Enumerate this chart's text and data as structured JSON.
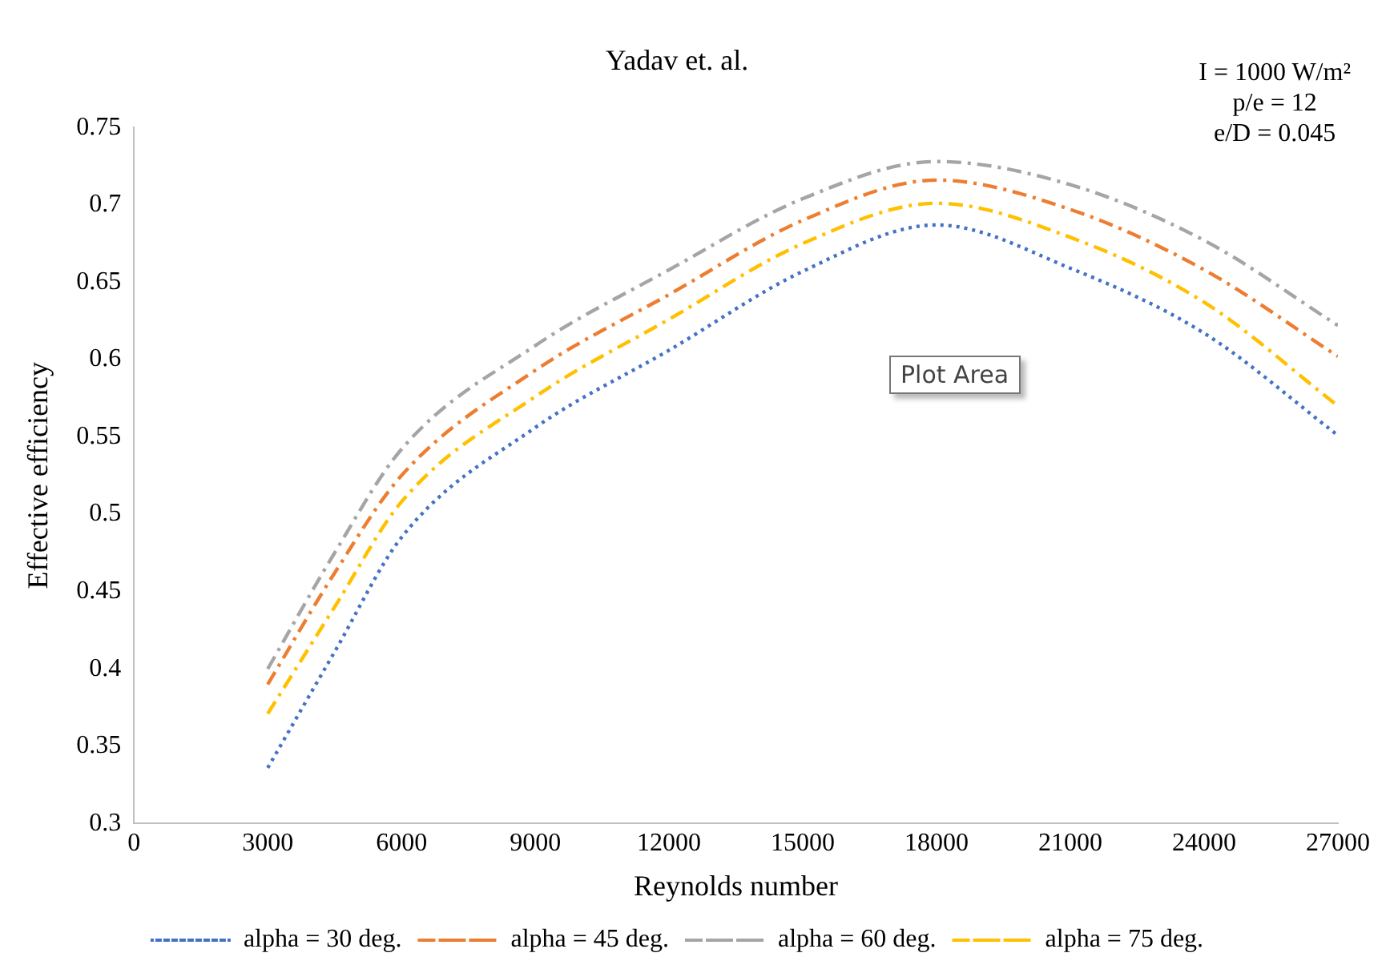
{
  "chart_data": {
    "type": "line",
    "title": "Yadav et. al.",
    "xlabel": "Reynolds number",
    "ylabel": "Effective efficiency",
    "annotations": [
      "I = 1000 W/m²",
      "p/e = 12",
      "e/D = 0.045",
      "Plot Area"
    ],
    "x": [
      3000,
      4500,
      6000,
      9000,
      12000,
      15000,
      18000,
      21000,
      24000,
      27000
    ],
    "series": [
      {
        "name": "alpha = 30 deg.",
        "color": "#4472c4",
        "line_style": "dotted",
        "values": [
          0.336,
          0.411,
          0.485,
          0.556,
          0.606,
          0.657,
          0.687,
          0.659,
          0.617,
          0.551
        ]
      },
      {
        "name": "alpha = 45 deg.",
        "color": "#ed7d31",
        "line_style": "dashed",
        "values": [
          0.39,
          0.462,
          0.525,
          0.593,
          0.642,
          0.69,
          0.716,
          0.697,
          0.658,
          0.602
        ]
      },
      {
        "name": "alpha = 60 deg.",
        "color": "#a5a5a5",
        "line_style": "dashed",
        "values": [
          0.4,
          0.475,
          0.542,
          0.609,
          0.658,
          0.704,
          0.728,
          0.713,
          0.677,
          0.622
        ]
      },
      {
        "name": "alpha = 75 deg.",
        "color": "#ffc000",
        "line_style": "dashed",
        "values": [
          0.371,
          0.44,
          0.508,
          0.576,
          0.626,
          0.675,
          0.701,
          0.679,
          0.637,
          0.57
        ]
      }
    ],
    "xlim": [
      0,
      27000
    ],
    "xticks": [
      0,
      3000,
      6000,
      9000,
      12000,
      15000,
      18000,
      21000,
      24000,
      27000
    ],
    "ylim": [
      0.3,
      0.75
    ],
    "yticks": [
      0.3,
      0.35,
      0.4,
      0.45,
      0.5,
      0.55,
      0.6,
      0.65,
      0.7,
      0.75
    ],
    "grid": false,
    "legend": "bottom",
    "marker": "none"
  }
}
